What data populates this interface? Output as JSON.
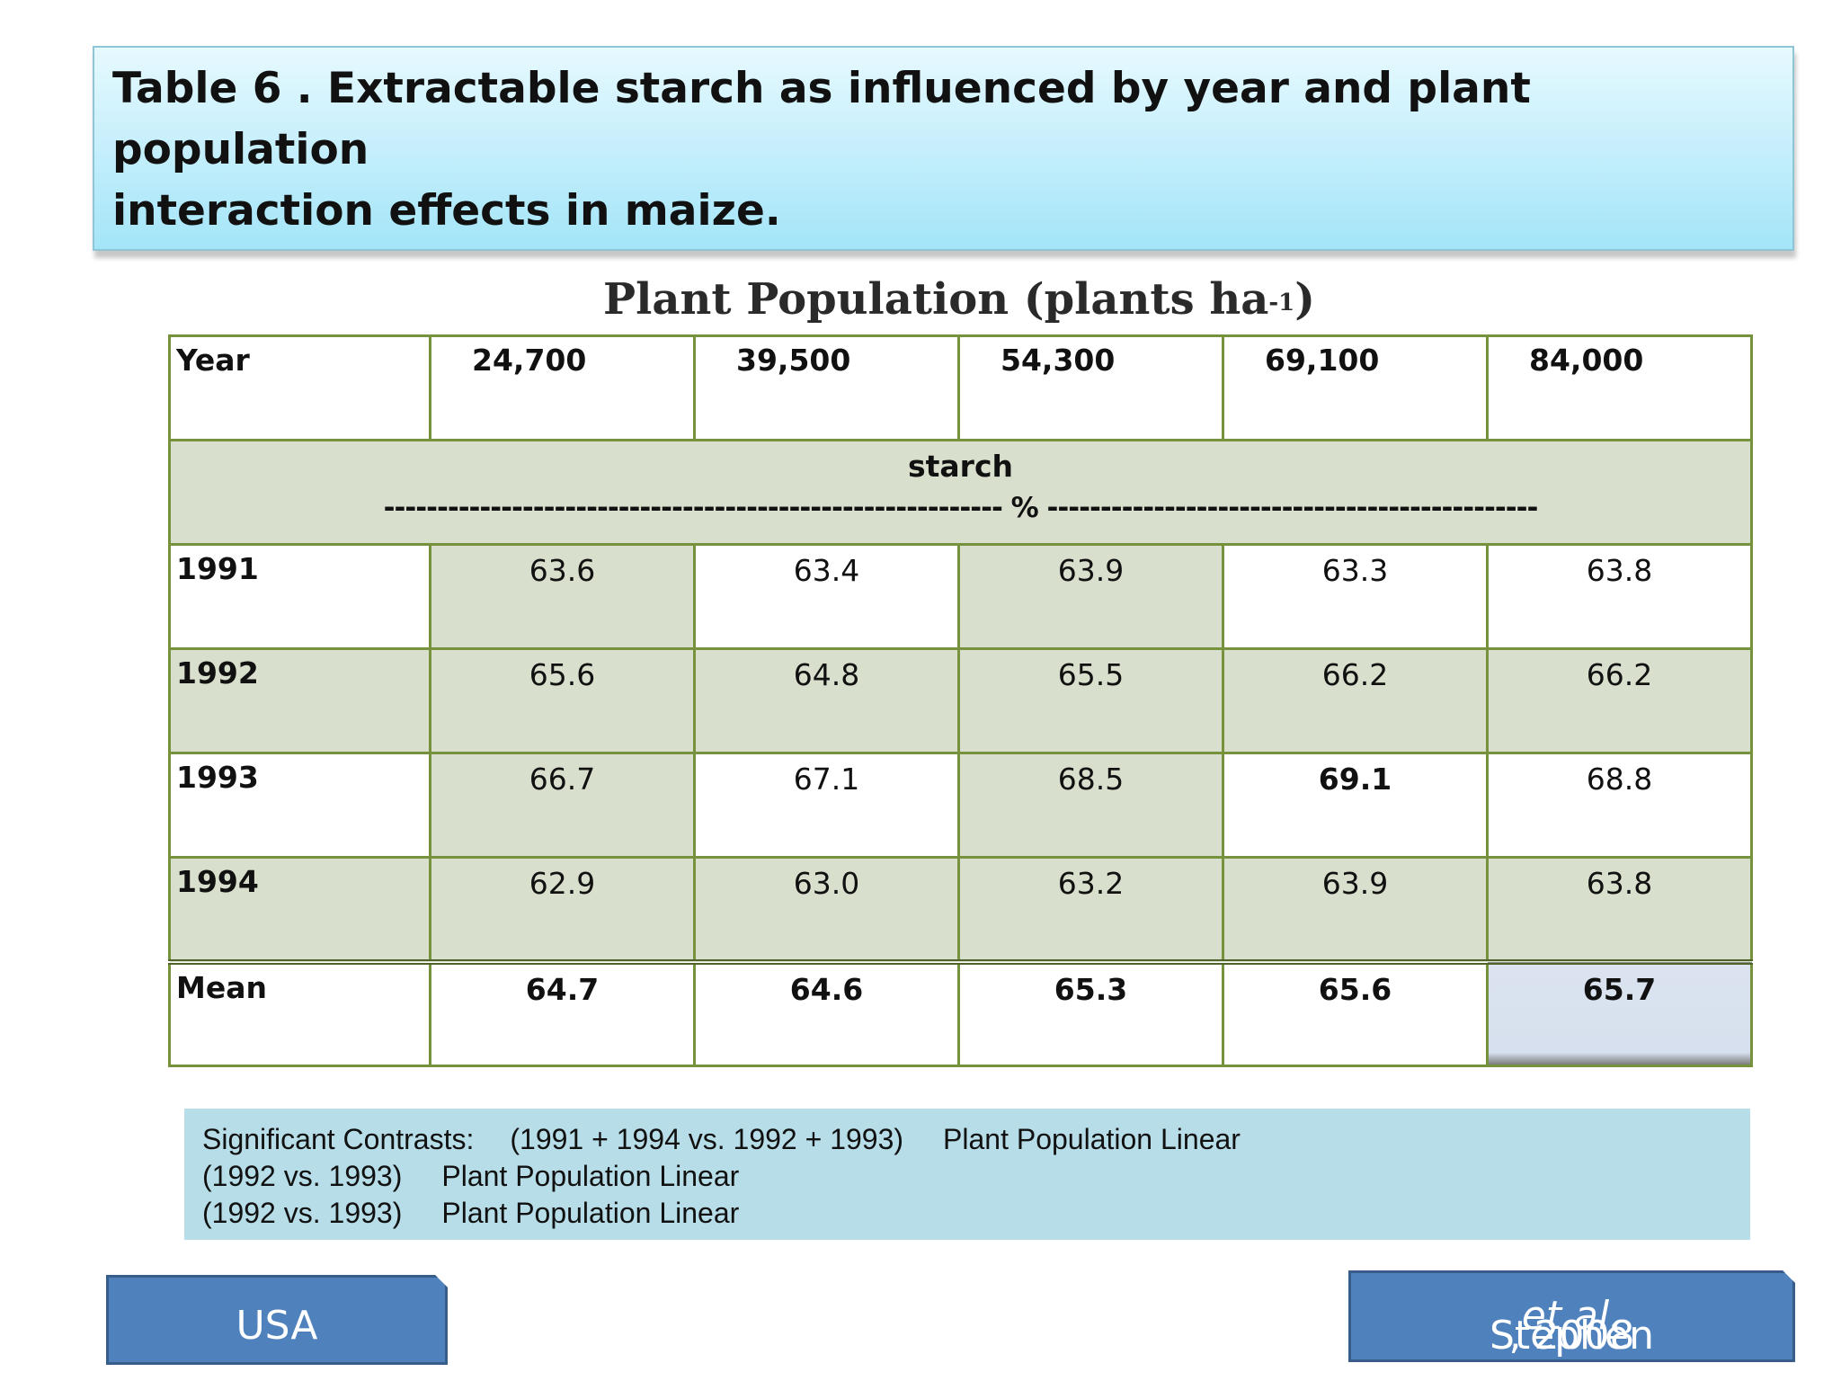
{
  "title": {
    "line1": "Table 6 . Extractable starch as influenced by year and plant population",
    "line2": "interaction effects in maize."
  },
  "table": {
    "caption": "Plant Population (plants ha",
    "caption_sup": "-1",
    "caption_close": ")",
    "header": [
      "Year",
      "24,700",
      "39,500",
      "54,300",
      "69,100",
      "84,000"
    ],
    "unit_label": "starch",
    "unit_line": "---------------------------------------------------------- % ----------------------------------------------",
    "rows": [
      {
        "year": "1991",
        "values": [
          "63.6",
          "63.4",
          "63.9",
          "63.3",
          "63.8"
        ]
      },
      {
        "year": "1992",
        "values": [
          "65.6",
          "64.8",
          "65.5",
          "66.2",
          "66.2"
        ]
      },
      {
        "year": "1993",
        "values": [
          "66.7",
          "67.1",
          "68.5",
          "69.1",
          "68.8"
        ]
      },
      {
        "year": "1994",
        "values": [
          "62.9",
          "63.0",
          "63.2",
          "63.9",
          "63.8"
        ]
      }
    ],
    "mean": {
      "label": "Mean",
      "values": [
        "64.7",
        "64.6",
        "65.3",
        "65.6",
        "65.7"
      ]
    }
  },
  "contrasts": {
    "line1_label": "Significant Contrasts:",
    "line1_contrast": "(1991 + 1994 vs. 1992 + 1993)",
    "line1_effect": "Plant Population Linear",
    "line2_contrast": "(1992 vs. 1993)",
    "line2_effect": "Plant Population Linear",
    "line3_contrast": "(1992 vs. 1993)",
    "line3_effect": "Plant Population Linear"
  },
  "badges": {
    "country": "USA",
    "source_author": "Stephen ",
    "source_etal": "et al.",
    "source_year": ", 2008"
  }
}
